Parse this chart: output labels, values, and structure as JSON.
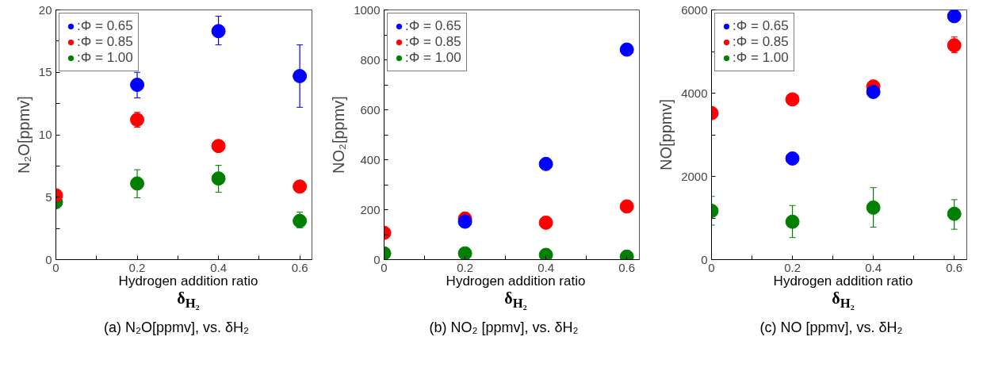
{
  "chart_data": [
    {
      "type": "scatter",
      "title": "(a) N₂O[ppmv], vs. δH₂",
      "xlabel": "Hydrogen addition ratio\nδ$_{H₂}$",
      "ylabel": "N₂O[ppmv]",
      "x": [
        0,
        0.2,
        0.4,
        0.6
      ],
      "xlim": [
        0,
        0.63
      ],
      "xticks": [
        0,
        {
          "value": 0.1,
          "label": null
        },
        0.2,
        {
          "value": 0.3,
          "label": null
        },
        0.4,
        {
          "value": 0.5,
          "label": null
        },
        0.6
      ],
      "ylim": [
        0,
        20
      ],
      "yticks": [
        0,
        {
          "value": 2.5,
          "label": null
        },
        5,
        {
          "value": 7.5,
          "label": null
        },
        10,
        {
          "value": 12.5,
          "label": null
        },
        15,
        {
          "value": 17.5,
          "label": null
        },
        20
      ],
      "grid": false,
      "legend": "top left",
      "marker": "circle",
      "series": [
        {
          "name": ":Φ = 0.65",
          "color": "#0000ff",
          "values": [
            null,
            14.0,
            18.3,
            14.7
          ],
          "errors": [
            null,
            [
              12.95,
              15.0
            ],
            [
              17.2,
              19.5
            ],
            [
              12.2,
              17.2
            ]
          ]
        },
        {
          "name": ":Φ = 0.85",
          "color": "#ff0000",
          "values": [
            5.15,
            11.2,
            9.1,
            5.85
          ],
          "errors": [
            null,
            [
              10.6,
              11.8
            ],
            null,
            null
          ]
        },
        {
          "name": ":Φ = 1.00",
          "color": "#008000",
          "values": [
            4.6,
            6.1,
            6.5,
            3.1
          ],
          "errors": [
            [
              4.3,
              4.9
            ],
            [
              4.95,
              7.2
            ],
            [
              5.4,
              7.55
            ],
            [
              2.55,
              3.8
            ]
          ]
        }
      ]
    },
    {
      "type": "scatter",
      "title": "(b) NO₂ [ppmv], vs. δH₂",
      "xlabel": "Hydrogen addition ratio\nδ$_{H₂}$",
      "ylabel": "NO₂[ppmv]",
      "x": [
        0,
        0.2,
        0.4,
        0.6
      ],
      "xlim": [
        0,
        0.631
      ],
      "xticks": [
        0,
        {
          "value": 0.1,
          "label": null
        },
        0.2,
        {
          "value": 0.3,
          "label": null
        },
        0.4,
        {
          "value": 0.5,
          "label": null
        },
        0.6
      ],
      "ylim": [
        0,
        1000
      ],
      "yticks": [
        0,
        {
          "value": 100,
          "label": null
        },
        200,
        {
          "value": 300,
          "label": null
        },
        400,
        {
          "value": 500,
          "label": null
        },
        600,
        {
          "value": 700,
          "label": null
        },
        800,
        {
          "value": 900,
          "label": null
        },
        1000
      ],
      "grid": false,
      "legend": "top left",
      "marker": "circle",
      "series": [
        {
          "name": ":Φ = 0.65",
          "color": "#0000ff",
          "values": [
            null,
            152,
            383,
            841
          ]
        },
        {
          "name": ":Φ = 0.85",
          "color": "#ff0000",
          "values": [
            107,
            164,
            148,
            213
          ],
          "errors": [
            null,
            [
              136,
              189
            ],
            null,
            [
              190,
              236
            ]
          ]
        },
        {
          "name": ":Φ = 1.00",
          "color": "#008000",
          "values": [
            25,
            25,
            19,
            12
          ]
        }
      ]
    },
    {
      "type": "scatter",
      "title": "(c) NO [ppmv], vs. δH₂",
      "xlabel": "Hydrogen addition ratio\nδ$_{H₂}$",
      "ylabel": "NO[ppmv]",
      "x": [
        0,
        0.2,
        0.4,
        0.6
      ],
      "xlim": [
        0,
        0.631
      ],
      "xticks": [
        0,
        {
          "value": 0.1,
          "label": null
        },
        0.2,
        {
          "value": 0.3,
          "label": null
        },
        0.4,
        {
          "value": 0.5,
          "label": null
        },
        0.6
      ],
      "ylim": [
        0,
        6000
      ],
      "yticks": [
        0,
        {
          "value": 1000,
          "label": null
        },
        2000,
        {
          "value": 3000,
          "label": null
        },
        4000,
        {
          "value": 5000,
          "label": null
        },
        6000
      ],
      "grid": false,
      "legend": "top left",
      "marker": "circle",
      "series": [
        {
          "name": ":Φ = 0.65",
          "color": "#0000ff",
          "values": [
            null,
            2430,
            4030,
            5850
          ]
        },
        {
          "name": ":Φ = 0.85",
          "color": "#ff0000",
          "values": [
            3520,
            3850,
            4160,
            5150
          ],
          "errors": [
            null,
            null,
            null,
            [
              4970,
              5350
            ]
          ]
        },
        {
          "name": ":Φ = 1.00",
          "color": "#008000",
          "values": [
            1170,
            910,
            1250,
            1100
          ],
          "errors": [
            [
              830,
              1520
            ],
            [
              530,
              1300
            ],
            [
              780,
              1730
            ],
            [
              730,
              1440
            ]
          ]
        }
      ]
    }
  ]
}
